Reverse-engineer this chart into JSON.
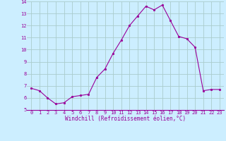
{
  "x": [
    0,
    1,
    2,
    3,
    4,
    5,
    6,
    7,
    8,
    9,
    10,
    11,
    12,
    13,
    14,
    15,
    16,
    17,
    18,
    19,
    20,
    21,
    22,
    23
  ],
  "y": [
    6.8,
    6.6,
    6.0,
    5.5,
    5.6,
    6.1,
    6.2,
    6.3,
    7.7,
    8.4,
    9.7,
    10.8,
    12.0,
    12.8,
    13.6,
    13.3,
    13.7,
    12.4,
    11.1,
    10.9,
    10.2,
    6.6,
    6.7,
    6.7
  ],
  "line_color": "#990099",
  "marker": "o",
  "marker_size": 1.8,
  "bg_color": "#cceeff",
  "grid_color": "#aacccc",
  "xlabel": "Windchill (Refroidissement éolien,°C)",
  "xlabel_color": "#990099",
  "tick_color": "#990099",
  "ylim": [
    5,
    14
  ],
  "yticks": [
    5,
    6,
    7,
    8,
    9,
    10,
    11,
    12,
    13,
    14
  ],
  "xticks": [
    0,
    1,
    2,
    3,
    4,
    5,
    6,
    7,
    8,
    9,
    10,
    11,
    12,
    13,
    14,
    15,
    16,
    17,
    18,
    19,
    20,
    21,
    22,
    23
  ],
  "font_family": "monospace",
  "tick_fontsize": 5.0,
  "xlabel_fontsize": 5.5
}
